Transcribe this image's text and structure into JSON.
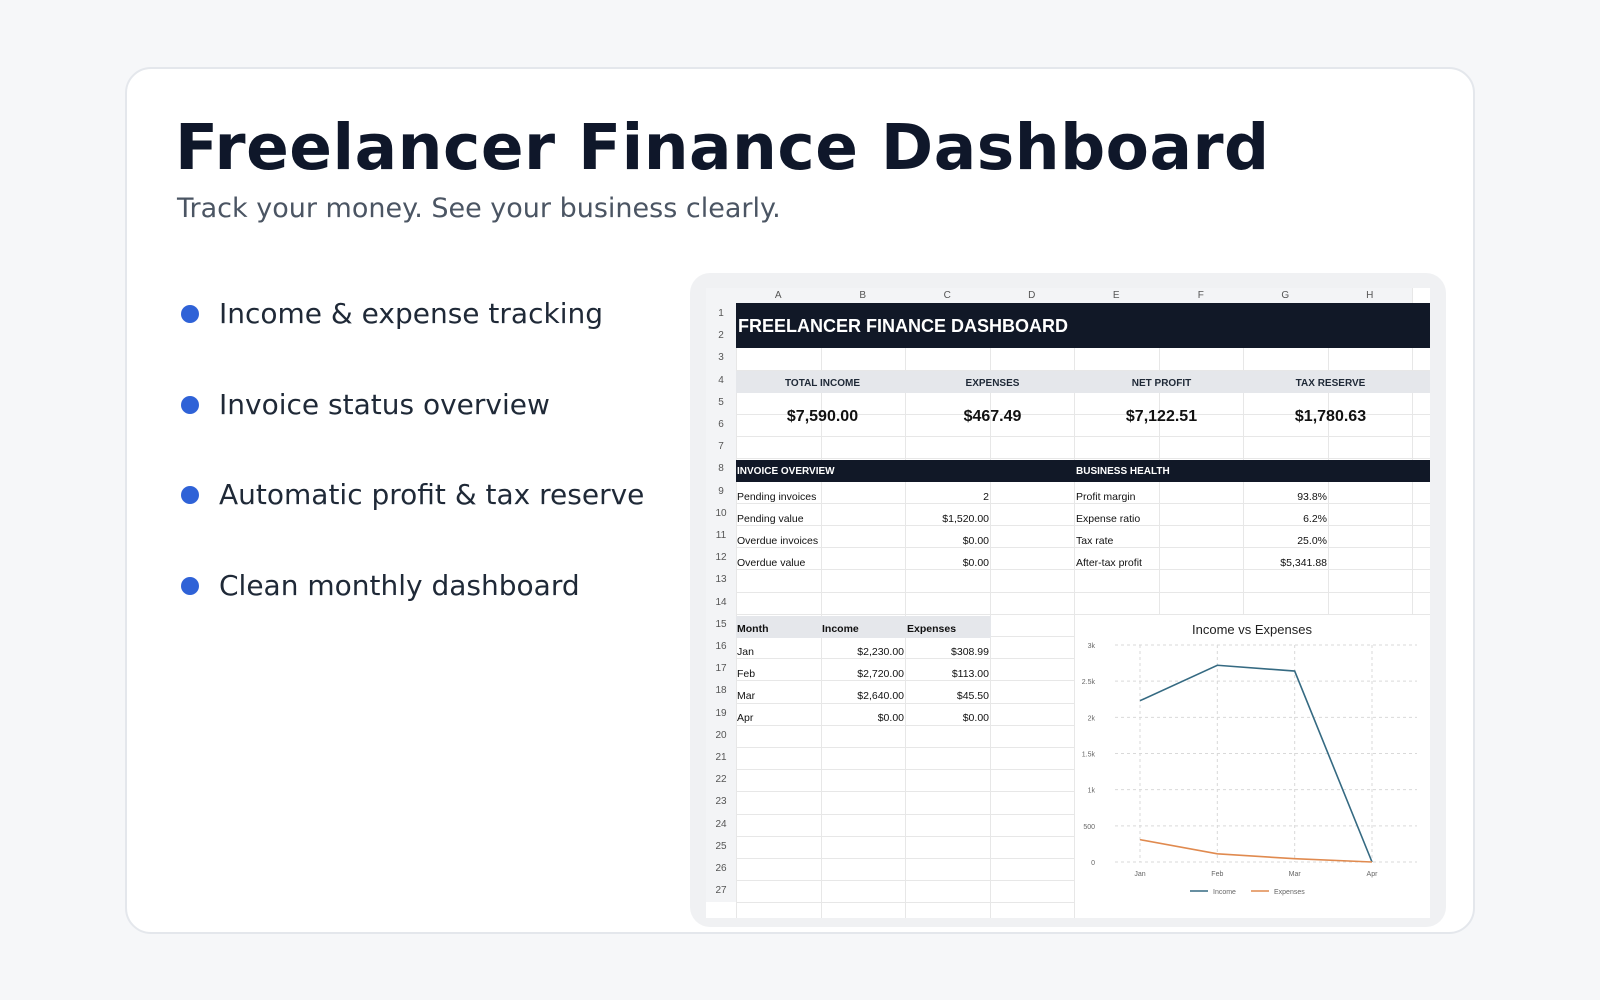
{
  "header": {
    "title": "Freelancer Finance Dashboard",
    "subtitle": "Track your money. See your business clearly."
  },
  "features": [
    "Income & expense tracking",
    "Invoice status overview",
    "Automatic profit & tax reserve",
    "Clean monthly dashboard"
  ],
  "sheet": {
    "columns": [
      "A",
      "B",
      "C",
      "D",
      "E",
      "F",
      "G",
      "H"
    ],
    "rows": [
      "1",
      "2",
      "3",
      "4",
      "5",
      "6",
      "7",
      "8",
      "9",
      "10",
      "11",
      "12",
      "13",
      "14",
      "15",
      "16",
      "17",
      "18",
      "19",
      "20",
      "21",
      "22",
      "23",
      "24",
      "25",
      "26",
      "27"
    ],
    "banner_title": "FREELANCER FINANCE DASHBOARD",
    "kpis": [
      {
        "label": "TOTAL INCOME",
        "value": "$7,590.00"
      },
      {
        "label": "EXPENSES",
        "value": "$467.49"
      },
      {
        "label": "NET PROFIT",
        "value": "$7,122.51"
      },
      {
        "label": "TAX RESERVE",
        "value": "$1,780.63"
      }
    ],
    "invoice_overview": {
      "title": "INVOICE OVERVIEW",
      "rows": [
        {
          "label": "Pending invoices",
          "value": "2"
        },
        {
          "label": "Pending value",
          "value": "$1,520.00"
        },
        {
          "label": "Overdue invoices",
          "value": "$0.00"
        },
        {
          "label": "Overdue value",
          "value": "$0.00"
        }
      ]
    },
    "business_health": {
      "title": "BUSINESS HEALTH",
      "rows": [
        {
          "label": "Profit margin",
          "value": "93.8%"
        },
        {
          "label": "Expense ratio",
          "value": "6.2%"
        },
        {
          "label": "Tax rate",
          "value": "25.0%"
        },
        {
          "label": "After-tax profit",
          "value": "$5,341.88"
        }
      ]
    },
    "monthly": {
      "headers": [
        "Month",
        "Income",
        "Expenses"
      ],
      "rows": [
        {
          "month": "Jan",
          "income": "$2,230.00",
          "expenses": "$308.99"
        },
        {
          "month": "Feb",
          "income": "$2,720.00",
          "expenses": "$113.00"
        },
        {
          "month": "Mar",
          "income": "$2,640.00",
          "expenses": "$45.50"
        },
        {
          "month": "Apr",
          "income": "$0.00",
          "expenses": "$0.00"
        }
      ]
    }
  },
  "chart_data": {
    "type": "line",
    "title": "Income vs Expenses",
    "categories": [
      "Jan",
      "Feb",
      "Mar",
      "Apr"
    ],
    "series": [
      {
        "name": "Income",
        "values": [
          2230,
          2720,
          2640,
          0
        ],
        "color": "#356a82"
      },
      {
        "name": "Expenses",
        "values": [
          308.99,
          113,
          45.5,
          0
        ],
        "color": "#e08a4f"
      }
    ],
    "ylim": [
      0,
      3000
    ],
    "yticks": [
      "0",
      "500",
      "1k",
      "1.5k",
      "2k",
      "2.5k",
      "3k"
    ],
    "ytick_values": [
      0,
      500,
      1000,
      1500,
      2000,
      2500,
      3000
    ],
    "grid": true,
    "legend": "bottom"
  },
  "colors": {
    "accent": "#2f62d7",
    "dark": "#111827"
  }
}
